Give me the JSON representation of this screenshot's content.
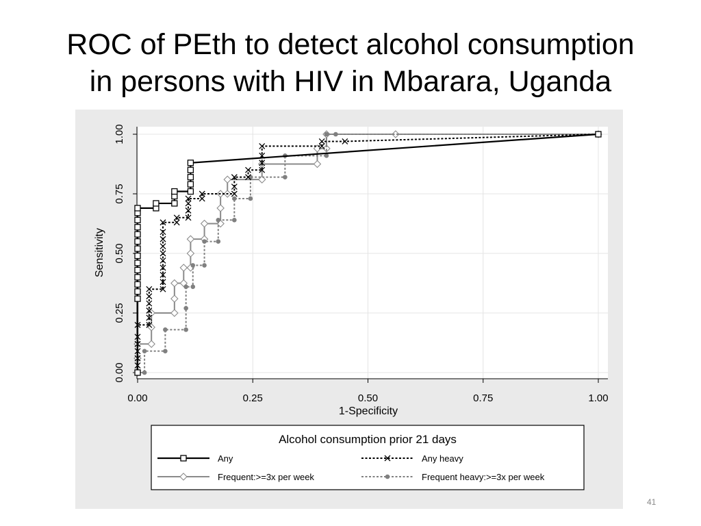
{
  "slide": {
    "title_line1": "ROC of PEth to detect alcohol consumption",
    "title_line2": "in persons with HIV in Mbarara, Uganda",
    "page_number": "41"
  },
  "chart_data": {
    "type": "line",
    "step": true,
    "xlabel": "1-Specificity",
    "ylabel": "Sensitivity",
    "xlim": [
      0,
      1
    ],
    "ylim": [
      0,
      1
    ],
    "x_ticks": [
      "0.00",
      "0.25",
      "0.50",
      "0.75",
      "1.00"
    ],
    "y_ticks": [
      "0.00",
      "0.25",
      "0.50",
      "0.75",
      "1.00"
    ],
    "grid": true,
    "legend_title": "Alcohol consumption prior 21 days",
    "legend_position": "bottom",
    "series": [
      {
        "name": "Any",
        "color": "#000000",
        "dash": "solid",
        "marker": "square",
        "points": [
          [
            0,
            0
          ],
          [
            0,
            0.31
          ],
          [
            0,
            0.34
          ],
          [
            0,
            0.37
          ],
          [
            0,
            0.4
          ],
          [
            0,
            0.43
          ],
          [
            0,
            0.46
          ],
          [
            0,
            0.49
          ],
          [
            0,
            0.52
          ],
          [
            0,
            0.55
          ],
          [
            0,
            0.58
          ],
          [
            0,
            0.61
          ],
          [
            0,
            0.64
          ],
          [
            0,
            0.67
          ],
          [
            0,
            0.69
          ],
          [
            0.04,
            0.69
          ],
          [
            0.04,
            0.71
          ],
          [
            0.08,
            0.71
          ],
          [
            0.08,
            0.74
          ],
          [
            0.08,
            0.76
          ],
          [
            0.115,
            0.76
          ],
          [
            0.115,
            0.79
          ],
          [
            0.115,
            0.82
          ],
          [
            0.115,
            0.85
          ],
          [
            0.115,
            0.88
          ],
          [
            1,
            1
          ]
        ]
      },
      {
        "name": "Any heavy",
        "color": "#000000",
        "dash": "dotted",
        "marker": "x",
        "points": [
          [
            0,
            0
          ],
          [
            0,
            0.03
          ],
          [
            0,
            0.06
          ],
          [
            0,
            0.09
          ],
          [
            0,
            0.12
          ],
          [
            0,
            0.15
          ],
          [
            0,
            0.2
          ],
          [
            0.025,
            0.2
          ],
          [
            0.025,
            0.23
          ],
          [
            0.025,
            0.26
          ],
          [
            0.025,
            0.29
          ],
          [
            0.025,
            0.32
          ],
          [
            0.025,
            0.35
          ],
          [
            0.055,
            0.35
          ],
          [
            0.055,
            0.38
          ],
          [
            0.055,
            0.41
          ],
          [
            0.055,
            0.44
          ],
          [
            0.055,
            0.47
          ],
          [
            0.055,
            0.5
          ],
          [
            0.055,
            0.53
          ],
          [
            0.055,
            0.56
          ],
          [
            0.055,
            0.59
          ],
          [
            0.055,
            0.63
          ],
          [
            0.085,
            0.63
          ],
          [
            0.085,
            0.65
          ],
          [
            0.11,
            0.65
          ],
          [
            0.11,
            0.68
          ],
          [
            0.11,
            0.71
          ],
          [
            0.11,
            0.73
          ],
          [
            0.14,
            0.73
          ],
          [
            0.14,
            0.75
          ],
          [
            0.21,
            0.75
          ],
          [
            0.21,
            0.78
          ],
          [
            0.21,
            0.82
          ],
          [
            0.24,
            0.82
          ],
          [
            0.24,
            0.85
          ],
          [
            0.27,
            0.85
          ],
          [
            0.27,
            0.88
          ],
          [
            0.27,
            0.91
          ],
          [
            0.27,
            0.95
          ],
          [
            0.4,
            0.95
          ],
          [
            0.4,
            0.97
          ],
          [
            0.45,
            0.97
          ],
          [
            1,
            1
          ]
        ]
      },
      {
        "name": "Frequent:>=3x per week",
        "color": "#8a8a8a",
        "dash": "solid",
        "marker": "diamond",
        "points": [
          [
            0,
            0
          ],
          [
            0,
            0.06
          ],
          [
            0,
            0.12
          ],
          [
            0.03,
            0.12
          ],
          [
            0.03,
            0.19
          ],
          [
            0.03,
            0.25
          ],
          [
            0.08,
            0.25
          ],
          [
            0.08,
            0.31
          ],
          [
            0.08,
            0.375
          ],
          [
            0.1,
            0.375
          ],
          [
            0.1,
            0.44
          ],
          [
            0.115,
            0.44
          ],
          [
            0.115,
            0.5
          ],
          [
            0.115,
            0.56
          ],
          [
            0.145,
            0.56
          ],
          [
            0.145,
            0.625
          ],
          [
            0.18,
            0.625
          ],
          [
            0.18,
            0.69
          ],
          [
            0.18,
            0.75
          ],
          [
            0.195,
            0.75
          ],
          [
            0.195,
            0.81
          ],
          [
            0.27,
            0.81
          ],
          [
            0.27,
            0.875
          ],
          [
            0.39,
            0.875
          ],
          [
            0.39,
            0.94
          ],
          [
            0.41,
            0.94
          ],
          [
            0.41,
            1.0
          ],
          [
            0.56,
            1.0
          ],
          [
            1,
            1
          ]
        ]
      },
      {
        "name": "Frequent heavy:>=3x per week",
        "color": "#808080",
        "dash": "dotted",
        "marker": "dot",
        "points": [
          [
            0,
            0
          ],
          [
            0.015,
            0
          ],
          [
            0.015,
            0.09
          ],
          [
            0.06,
            0.09
          ],
          [
            0.06,
            0.18
          ],
          [
            0.105,
            0.18
          ],
          [
            0.105,
            0.27
          ],
          [
            0.105,
            0.36
          ],
          [
            0.12,
            0.36
          ],
          [
            0.12,
            0.45
          ],
          [
            0.145,
            0.45
          ],
          [
            0.145,
            0.55
          ],
          [
            0.175,
            0.55
          ],
          [
            0.175,
            0.64
          ],
          [
            0.21,
            0.64
          ],
          [
            0.21,
            0.73
          ],
          [
            0.245,
            0.73
          ],
          [
            0.245,
            0.82
          ],
          [
            0.32,
            0.82
          ],
          [
            0.32,
            0.91
          ],
          [
            0.41,
            0.91
          ],
          [
            0.41,
            1.0
          ],
          [
            0.43,
            1.0
          ],
          [
            1,
            1
          ]
        ]
      }
    ]
  }
}
